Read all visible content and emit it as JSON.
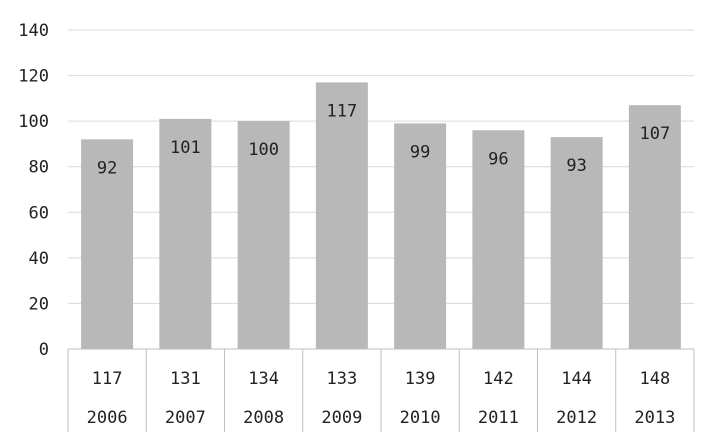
{
  "chart_data": {
    "type": "bar",
    "categories": [
      "2006",
      "2007",
      "2008",
      "2009",
      "2010",
      "2011",
      "2012",
      "2013"
    ],
    "second_row": [
      "117",
      "131",
      "134",
      "133",
      "139",
      "142",
      "144",
      "148"
    ],
    "values": [
      92,
      101,
      100,
      117,
      99,
      96,
      93,
      107
    ],
    "value_labels": [
      "92",
      "101",
      "100",
      "117",
      "99",
      "96",
      "93",
      "107"
    ],
    "y_ticks": [
      "0",
      "20",
      "40",
      "60",
      "80",
      "100",
      "120",
      "140"
    ],
    "ylim": [
      0,
      140
    ],
    "title": "",
    "xlabel": "",
    "ylabel": "",
    "grid": true,
    "colors": {
      "bar": "#b9b8b9",
      "grid": "#d9d9d9",
      "axis": "#bfbfbf"
    }
  }
}
